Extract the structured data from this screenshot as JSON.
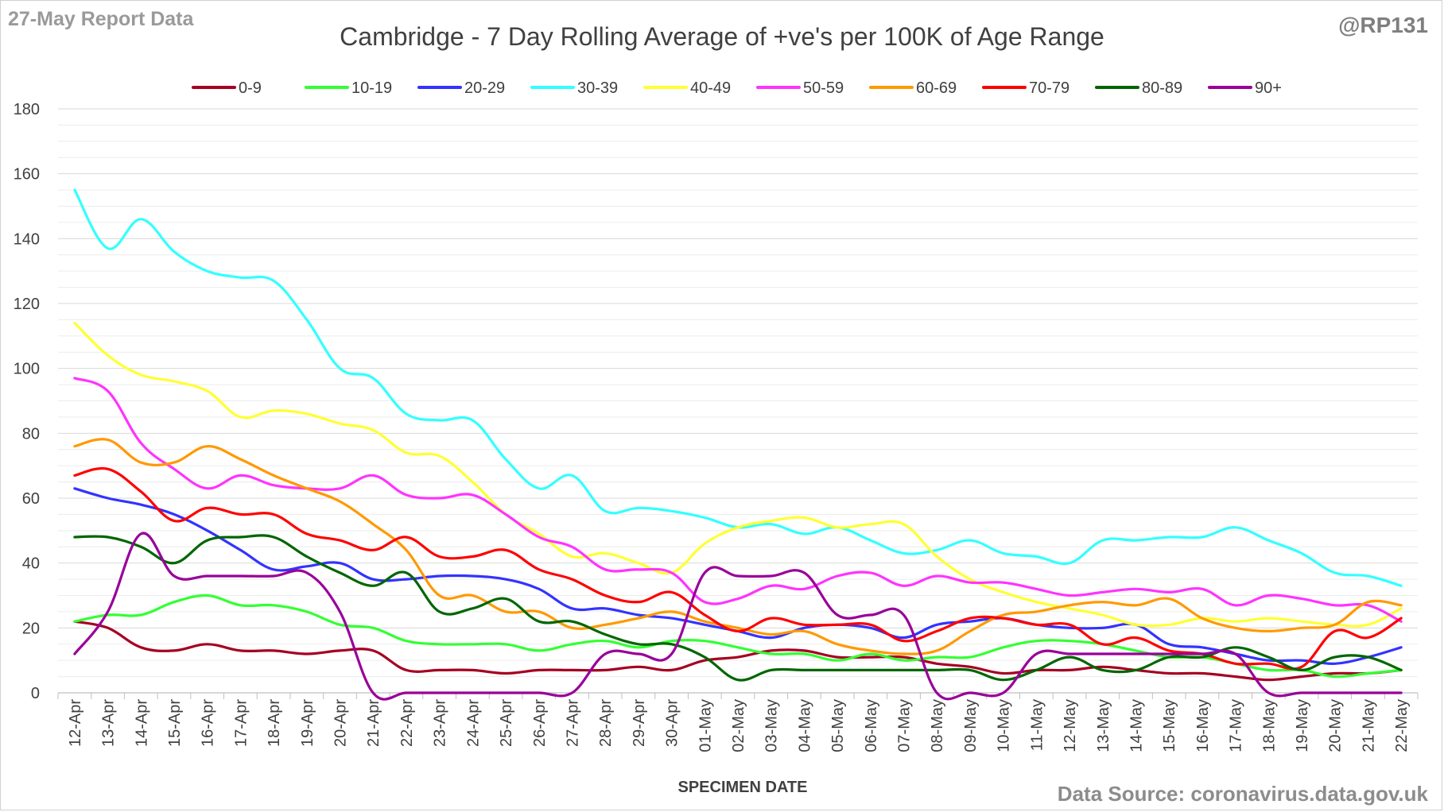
{
  "header": {
    "report_label": "27-May Report Data",
    "handle": "@RP131",
    "source": "Data Source: coronavirus.data.gov.uk"
  },
  "chart_data": {
    "type": "line",
    "title": "Cambridge - 7 Day Rolling Average of +ve's per 100K of Age Range",
    "xlabel": "SPECIMEN DATE",
    "ylabel": "",
    "ylim": [
      0,
      180
    ],
    "yticks": [
      0,
      20,
      40,
      60,
      80,
      100,
      120,
      140,
      160,
      180
    ],
    "grid": true,
    "legend_position": "top",
    "categories": [
      "12-Apr",
      "13-Apr",
      "14-Apr",
      "15-Apr",
      "16-Apr",
      "17-Apr",
      "18-Apr",
      "19-Apr",
      "20-Apr",
      "21-Apr",
      "22-Apr",
      "23-Apr",
      "24-Apr",
      "25-Apr",
      "26-Apr",
      "27-Apr",
      "28-Apr",
      "29-Apr",
      "30-Apr",
      "01-May",
      "02-May",
      "03-May",
      "04-May",
      "05-May",
      "06-May",
      "07-May",
      "08-May",
      "09-May",
      "10-May",
      "11-May",
      "12-May",
      "13-May",
      "14-May",
      "15-May",
      "16-May",
      "17-May",
      "18-May",
      "19-May",
      "20-May",
      "21-May",
      "22-May"
    ],
    "series": [
      {
        "name": "0-9",
        "color": "#A50021",
        "values": [
          22,
          20,
          14,
          13,
          15,
          13,
          13,
          12,
          13,
          13,
          7,
          7,
          7,
          6,
          7,
          7,
          7,
          8,
          7,
          10,
          11,
          13,
          13,
          11,
          11,
          11,
          9,
          8,
          6,
          7,
          7,
          8,
          7,
          6,
          6,
          5,
          4,
          5,
          6,
          6,
          7
        ]
      },
      {
        "name": "10-19",
        "color": "#33FF33",
        "values": [
          22,
          24,
          24,
          28,
          30,
          27,
          27,
          25,
          21,
          20,
          16,
          15,
          15,
          15,
          13,
          15,
          16,
          14,
          16,
          16,
          14,
          12,
          12,
          10,
          12,
          10,
          11,
          11,
          14,
          16,
          16,
          15,
          13,
          11,
          11,
          9,
          7,
          7,
          5,
          6,
          7
        ]
      },
      {
        "name": "20-29",
        "color": "#3333FF",
        "values": [
          63,
          60,
          58,
          55,
          50,
          44,
          38,
          39,
          40,
          35,
          35,
          36,
          36,
          35,
          32,
          26,
          26,
          24,
          23,
          21,
          19,
          17,
          20,
          21,
          20,
          17,
          21,
          22,
          23,
          21,
          20,
          20,
          21,
          15,
          14,
          12,
          10,
          10,
          9,
          11,
          14
        ]
      },
      {
        "name": "30-39",
        "color": "#33FFFF",
        "values": [
          155,
          137,
          146,
          136,
          130,
          128,
          127,
          115,
          100,
          97,
          86,
          84,
          84,
          72,
          63,
          67,
          56,
          57,
          56,
          54,
          51,
          52,
          49,
          51,
          47,
          43,
          44,
          47,
          43,
          42,
          40,
          47,
          47,
          48,
          48,
          51,
          47,
          43,
          37,
          36,
          33
        ]
      },
      {
        "name": "40-49",
        "color": "#FFFF33",
        "values": [
          114,
          104,
          98,
          96,
          93,
          85,
          87,
          86,
          83,
          81,
          74,
          73,
          65,
          55,
          49,
          42,
          43,
          40,
          37,
          46,
          51,
          53,
          54,
          51,
          52,
          52,
          42,
          35,
          31,
          28,
          26,
          24,
          21,
          21,
          23,
          22,
          23,
          22,
          21,
          21,
          26
        ]
      },
      {
        "name": "50-59",
        "color": "#FF33FF",
        "values": [
          97,
          93,
          77,
          69,
          63,
          67,
          64,
          63,
          63,
          67,
          61,
          60,
          61,
          55,
          48,
          45,
          38,
          38,
          37,
          28,
          29,
          33,
          32,
          36,
          37,
          33,
          36,
          34,
          34,
          32,
          30,
          31,
          32,
          31,
          32,
          27,
          30,
          29,
          27,
          27,
          22
        ]
      },
      {
        "name": "60-69",
        "color": "#FF9900",
        "values": [
          76,
          78,
          71,
          71,
          76,
          72,
          67,
          63,
          59,
          52,
          44,
          30,
          30,
          25,
          25,
          20,
          21,
          23,
          25,
          22,
          20,
          18,
          19,
          15,
          13,
          12,
          13,
          19,
          24,
          25,
          27,
          28,
          27,
          29,
          23,
          20,
          19,
          20,
          21,
          28,
          27
        ]
      },
      {
        "name": "70-79",
        "color": "#FF0000",
        "values": [
          67,
          69,
          62,
          53,
          57,
          55,
          55,
          49,
          47,
          44,
          48,
          42,
          42,
          44,
          38,
          35,
          30,
          28,
          31,
          24,
          19,
          23,
          21,
          21,
          21,
          16,
          19,
          23,
          23,
          21,
          21,
          15,
          17,
          13,
          12,
          9,
          9,
          8,
          19,
          17,
          23
        ]
      },
      {
        "name": "80-89",
        "color": "#006600",
        "values": [
          48,
          48,
          45,
          40,
          47,
          48,
          48,
          42,
          37,
          33,
          37,
          25,
          26,
          29,
          22,
          22,
          18,
          15,
          15,
          11,
          4,
          7,
          7,
          7,
          7,
          7,
          7,
          7,
          4,
          7,
          11,
          7,
          7,
          11,
          11,
          14,
          11,
          7,
          11,
          11,
          7
        ]
      },
      {
        "name": "90+",
        "color": "#990099",
        "values": [
          12,
          25,
          49,
          36,
          36,
          36,
          36,
          37,
          25,
          0,
          0,
          0,
          0,
          0,
          0,
          0,
          12,
          12,
          12,
          37,
          36,
          36,
          37,
          24,
          24,
          24,
          0,
          0,
          0,
          12,
          12,
          12,
          12,
          12,
          12,
          12,
          0,
          0,
          0,
          0,
          0
        ]
      }
    ]
  }
}
